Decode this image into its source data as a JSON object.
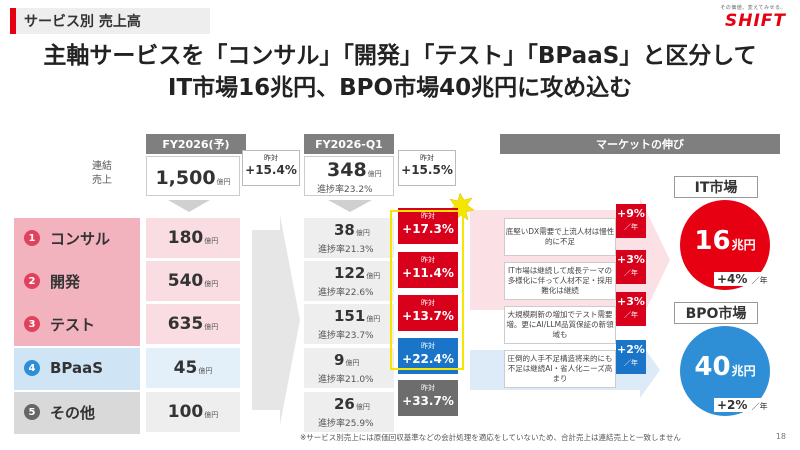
{
  "header": {
    "title": "サービス別 売上高"
  },
  "logo": {
    "tagline": "その価値、変えてみせる。",
    "name": "SHIFT"
  },
  "headline": {
    "line1": "主軸サービスを「コンサル」「開発」「テスト」「BPaaS」と区分して",
    "line2": "IT市場16兆円、BPO市場40兆円に攻め込む"
  },
  "fy_plan": {
    "header": "FY2026(予)",
    "total_value": "1,500",
    "total_unit": "億円",
    "yoy_label": "昨対",
    "yoy_value": "+15.4%"
  },
  "fy_q1": {
    "header": "FY2026-Q1",
    "total_value": "348",
    "total_unit": "億円",
    "total_rate": "進捗率23.2%",
    "yoy_label": "昨対",
    "yoy_value": "+15.5%"
  },
  "consolidated_label": {
    "line1": "連結",
    "line2": "売上"
  },
  "segments": [
    {
      "num": "1",
      "name": "コンサル",
      "plan": "180",
      "unit": "億円",
      "q1": "38",
      "q1_unit": "億円",
      "rate": "進捗率21.3%",
      "yoy_label": "昨対",
      "yoy": "+17.3%"
    },
    {
      "num": "2",
      "name": "開発",
      "plan": "540",
      "unit": "億円",
      "q1": "122",
      "q1_unit": "億円",
      "rate": "進捗率22.6%",
      "yoy_label": "昨対",
      "yoy": "+11.4%"
    },
    {
      "num": "3",
      "name": "テスト",
      "plan": "635",
      "unit": "億円",
      "q1": "151",
      "q1_unit": "億円",
      "rate": "進捗率23.7%",
      "yoy_label": "昨対",
      "yoy": "+13.7%"
    },
    {
      "num": "4",
      "name": "BPaaS",
      "plan": "45",
      "unit": "億円",
      "q1": "9",
      "q1_unit": "億円",
      "rate": "進捗率21.0%",
      "yoy_label": "昨対",
      "yoy": "+22.4%"
    },
    {
      "num": "5",
      "name": "その他",
      "plan": "100",
      "unit": "億円",
      "q1": "26",
      "q1_unit": "億円",
      "rate": "進捗率25.9%",
      "yoy_label": "昨対",
      "yoy": "+33.7%"
    }
  ],
  "market": {
    "header": "マーケットの伸び",
    "drivers": [
      {
        "text": "底堅いDX需要で上流人材は慢性的に不足",
        "growth": "+9%",
        "unit": "／年"
      },
      {
        "text": "IT市場は継続して成長テーマの多様化に伴って人材不足・採用難化は継続",
        "growth": "+3%",
        "unit": "／年"
      },
      {
        "text": "大規模刷新の増加でテスト需要増。更にAI/LLM品質保証の新領域も",
        "growth": "+3%",
        "unit": "／年"
      },
      {
        "text": "圧倒的人手不足構造将来的にも不足は継続AI・省人化ニーズ高まり",
        "growth": "+2%",
        "unit": "／年"
      }
    ],
    "it": {
      "label": "IT市場",
      "value": "16",
      "unit": "兆円",
      "growth": "+4%",
      "growth_unit": "／年"
    },
    "bpo": {
      "label": "BPO市場",
      "value": "40",
      "unit": "兆円",
      "growth": "+2%",
      "growth_unit": "／年"
    }
  },
  "colors": {
    "brand_red": "#e60012",
    "pink_band": "#f2b3bf",
    "pink_circle": "#e0425e",
    "blue_band": "#cfe4f5",
    "blue_circle": "#2f8fd6",
    "yoy_red": "#d9001b",
    "yoy_blue": "#1a75c9",
    "yoy_grey": "#6d6d6d",
    "frame_yellow": "#f5e500"
  },
  "footnote": "※サービス別売上には原価回収基準などの会計処理を適応をしていないため、合計売上は連結売上と一致しません",
  "page_number": "18"
}
